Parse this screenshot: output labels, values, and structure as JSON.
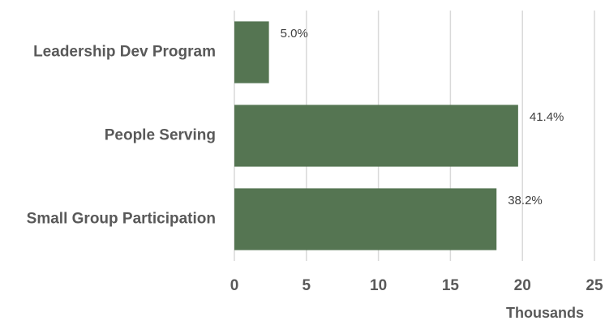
{
  "chart_data": {
    "type": "hbar",
    "categories": [
      "Leadership Dev Program",
      "People Serving",
      "Small Group Participation"
    ],
    "values": [
      2.4,
      19.7,
      18.2
    ],
    "data_labels": [
      "5.0%",
      "41.4%",
      "38.2%"
    ],
    "color": "#557552",
    "x_label": "Thousands",
    "xlim": [
      0,
      25
    ],
    "xticks": [
      0,
      5,
      10,
      15,
      20,
      25
    ],
    "grid": true
  }
}
